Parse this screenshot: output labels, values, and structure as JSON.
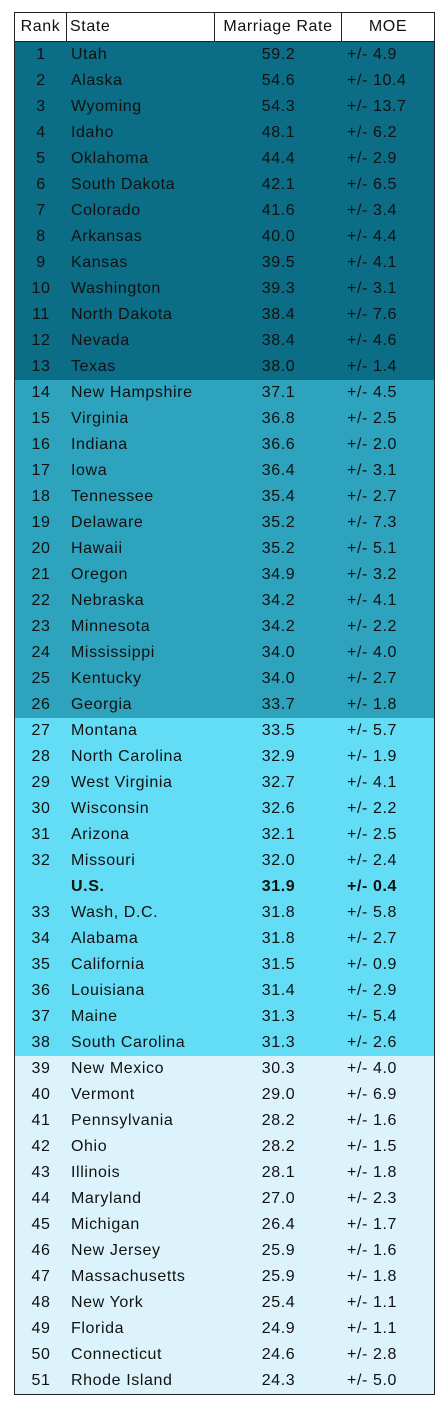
{
  "table": {
    "header": {
      "rank": "Rank",
      "state": "State",
      "rate": "Marriage Rate",
      "moe": "MOE"
    },
    "groups": [
      {
        "color": "#0b6d86",
        "rows": [
          {
            "rank": "1",
            "state": "Utah",
            "rate": "59.2",
            "moe": "+/- 4.9"
          },
          {
            "rank": "2",
            "state": "Alaska",
            "rate": "54.6",
            "moe": "+/- 10.4"
          },
          {
            "rank": "3",
            "state": "Wyoming",
            "rate": "54.3",
            "moe": "+/- 13.7"
          },
          {
            "rank": "4",
            "state": "Idaho",
            "rate": "48.1",
            "moe": "+/- 6.2"
          },
          {
            "rank": "5",
            "state": "Oklahoma",
            "rate": "44.4",
            "moe": "+/- 2.9"
          },
          {
            "rank": "6",
            "state": "South Dakota",
            "rate": "42.1",
            "moe": "+/- 6.5"
          },
          {
            "rank": "7",
            "state": "Colorado",
            "rate": "41.6",
            "moe": "+/- 3.4"
          },
          {
            "rank": "8",
            "state": "Arkansas",
            "rate": "40.0",
            "moe": "+/- 4.4"
          },
          {
            "rank": "9",
            "state": "Kansas",
            "rate": "39.5",
            "moe": "+/- 4.1"
          },
          {
            "rank": "10",
            "state": "Washington",
            "rate": "39.3",
            "moe": "+/- 3.1"
          },
          {
            "rank": "11",
            "state": "North Dakota",
            "rate": "38.4",
            "moe": "+/- 7.6"
          },
          {
            "rank": "12",
            "state": "Nevada",
            "rate": "38.4",
            "moe": "+/- 4.6"
          },
          {
            "rank": "13",
            "state": "Texas",
            "rate": "38.0",
            "moe": "+/- 1.4"
          }
        ]
      },
      {
        "color": "#2ea3bd",
        "rows": [
          {
            "rank": "14",
            "state": "New Hampshire",
            "rate": "37.1",
            "moe": "+/- 4.5"
          },
          {
            "rank": "15",
            "state": "Virginia",
            "rate": "36.8",
            "moe": "+/- 2.5"
          },
          {
            "rank": "16",
            "state": "Indiana",
            "rate": "36.6",
            "moe": "+/- 2.0"
          },
          {
            "rank": "17",
            "state": "Iowa",
            "rate": "36.4",
            "moe": "+/- 3.1"
          },
          {
            "rank": "18",
            "state": "Tennessee",
            "rate": "35.4",
            "moe": "+/- 2.7"
          },
          {
            "rank": "19",
            "state": "Delaware",
            "rate": "35.2",
            "moe": "+/- 7.3"
          },
          {
            "rank": "20",
            "state": "Hawaii",
            "rate": "35.2",
            "moe": "+/- 5.1"
          },
          {
            "rank": "21",
            "state": "Oregon",
            "rate": "34.9",
            "moe": "+/- 3.2"
          },
          {
            "rank": "22",
            "state": "Nebraska",
            "rate": "34.2",
            "moe": "+/- 4.1"
          },
          {
            "rank": "23",
            "state": "Minnesota",
            "rate": "34.2",
            "moe": "+/- 2.2"
          },
          {
            "rank": "24",
            "state": "Mississippi",
            "rate": "34.0",
            "moe": "+/- 4.0"
          },
          {
            "rank": "25",
            "state": "Kentucky",
            "rate": "34.0",
            "moe": "+/- 2.7"
          },
          {
            "rank": "26",
            "state": "Georgia",
            "rate": "33.7",
            "moe": "+/- 1.8"
          }
        ]
      },
      {
        "color": "#63ddf6",
        "rows": [
          {
            "rank": "27",
            "state": "Montana",
            "rate": "33.5",
            "moe": "+/- 5.7"
          },
          {
            "rank": "28",
            "state": "North Carolina",
            "rate": "32.9",
            "moe": "+/- 1.9"
          },
          {
            "rank": "29",
            "state": "West Virginia",
            "rate": "32.7",
            "moe": "+/- 4.1"
          },
          {
            "rank": "30",
            "state": "Wisconsin",
            "rate": "32.6",
            "moe": "+/- 2.2"
          },
          {
            "rank": "31",
            "state": "Arizona",
            "rate": "32.1",
            "moe": "+/- 2.5"
          },
          {
            "rank": "32",
            "state": "Missouri",
            "rate": "32.0",
            "moe": "+/- 2.4"
          },
          {
            "state": "U.S.",
            "rate": "31.9",
            "moe": "+/- 0.4",
            "bold": true
          },
          {
            "rank": "33",
            "state": "Wash, D.C.",
            "rate": "31.8",
            "moe": "+/- 5.8"
          },
          {
            "rank": "34",
            "state": "Alabama",
            "rate": "31.8",
            "moe": "+/- 2.7"
          },
          {
            "rank": "35",
            "state": "California",
            "rate": "31.5",
            "moe": "+/- 0.9"
          },
          {
            "rank": "36",
            "state": "Louisiana",
            "rate": "31.4",
            "moe": "+/- 2.9"
          },
          {
            "rank": "37",
            "state": "Maine",
            "rate": "31.3",
            "moe": "+/- 5.4"
          },
          {
            "rank": "38",
            "state": "South Carolina",
            "rate": "31.3",
            "moe": "+/- 2.6"
          }
        ]
      },
      {
        "color": "#dcf3fb",
        "rows": [
          {
            "rank": "39",
            "state": "New Mexico",
            "rate": "30.3",
            "moe": "+/- 4.0"
          },
          {
            "rank": "40",
            "state": "Vermont",
            "rate": "29.0",
            "moe": "+/- 6.9"
          },
          {
            "rank": "41",
            "state": "Pennsylvania",
            "rate": "28.2",
            "moe": "+/- 1.6"
          },
          {
            "rank": "42",
            "state": "Ohio",
            "rate": "28.2",
            "moe": "+/- 1.5"
          },
          {
            "rank": "43",
            "state": "Illinois",
            "rate": "28.1",
            "moe": "+/- 1.8"
          },
          {
            "rank": "44",
            "state": "Maryland",
            "rate": "27.0",
            "moe": "+/- 2.3"
          },
          {
            "rank": "45",
            "state": "Michigan",
            "rate": "26.4",
            "moe": "+/- 1.7"
          },
          {
            "rank": "46",
            "state": "New Jersey",
            "rate": "25.9",
            "moe": "+/- 1.6"
          },
          {
            "rank": "47",
            "state": "Massachusetts",
            "rate": "25.9",
            "moe": "+/- 1.8"
          },
          {
            "rank": "48",
            "state": "New York",
            "rate": "25.4",
            "moe": "+/- 1.1"
          },
          {
            "rank": "49",
            "state": "Florida",
            "rate": "24.9",
            "moe": "+/- 1.1"
          },
          {
            "rank": "50",
            "state": "Connecticut",
            "rate": "24.6",
            "moe": "+/- 2.8"
          },
          {
            "rank": "51",
            "state": "Rhode Island",
            "rate": "24.3",
            "moe": "+/- 5.0"
          }
        ]
      }
    ]
  }
}
